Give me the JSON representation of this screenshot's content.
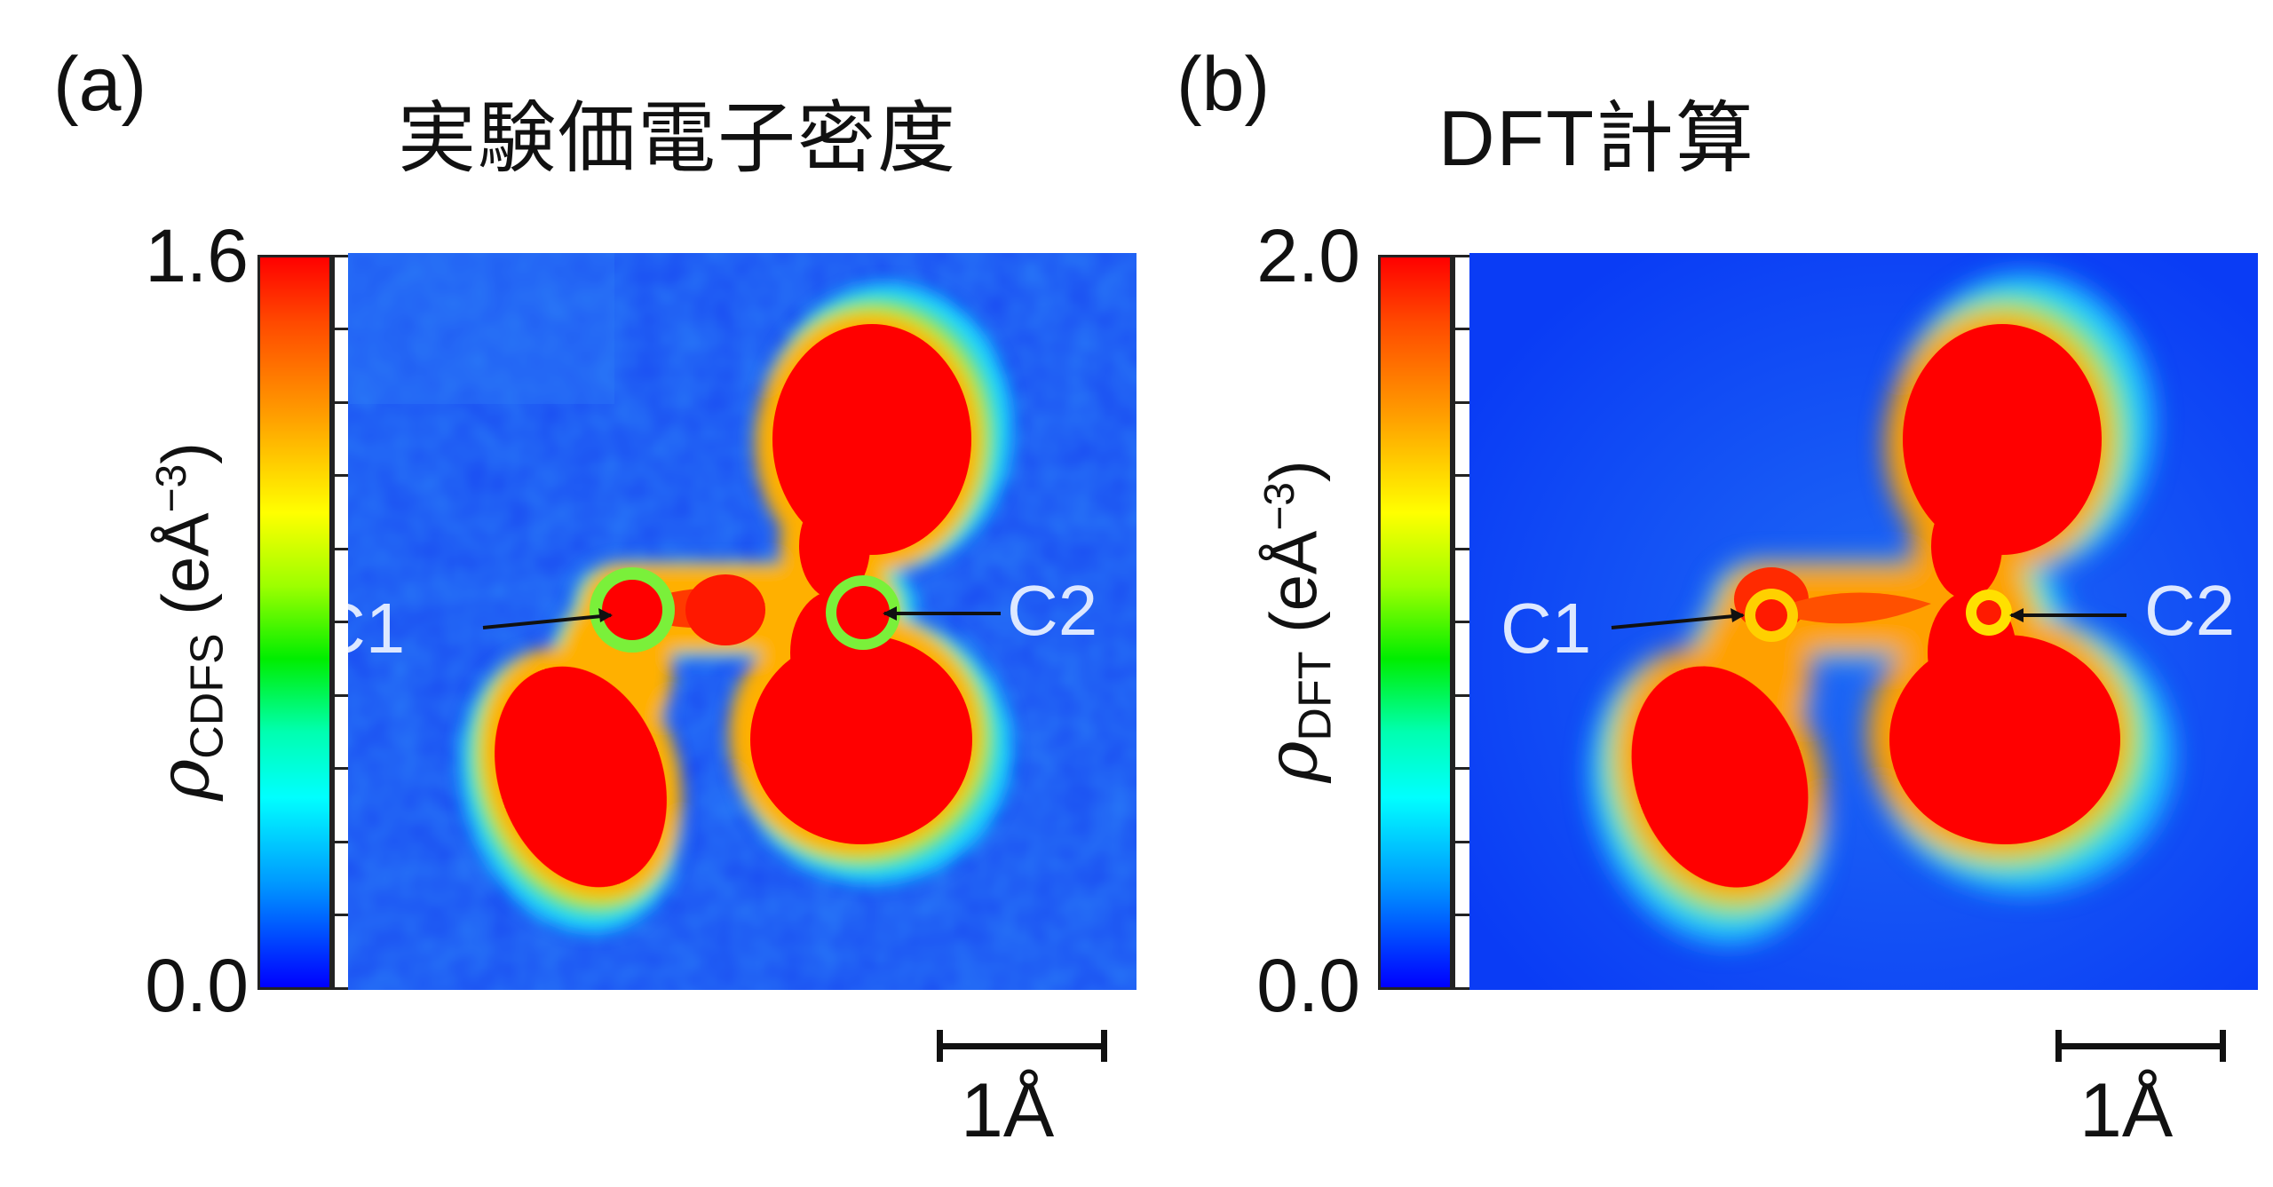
{
  "panels": [
    {
      "letter": "(a)",
      "title": "実験価電子密度",
      "colorbar": {
        "max": "1.6",
        "min": "0.0",
        "label_symbol": "ρ",
        "label_sub": "CDFS",
        "label_unit": "(eÅ",
        "label_sup": "−3",
        "label_close": ")"
      },
      "atom_labels": {
        "left": "C1",
        "right": "C2"
      },
      "scale_label": "1Å"
    },
    {
      "letter": "(b)",
      "title": "DFT計算",
      "colorbar": {
        "max": "2.0",
        "min": "0.0",
        "label_symbol": "ρ",
        "label_sub": "DFT",
        "label_unit": "(eÅ",
        "label_sup": "−3",
        "label_close": ")"
      },
      "atom_labels": {
        "left": "C1",
        "right": "C2"
      },
      "scale_label": "1Å"
    }
  ],
  "colors": {
    "map_background_a": "#1a4cf2",
    "map_background_b": "#0a3cf5",
    "high": "#ff0000"
  }
}
